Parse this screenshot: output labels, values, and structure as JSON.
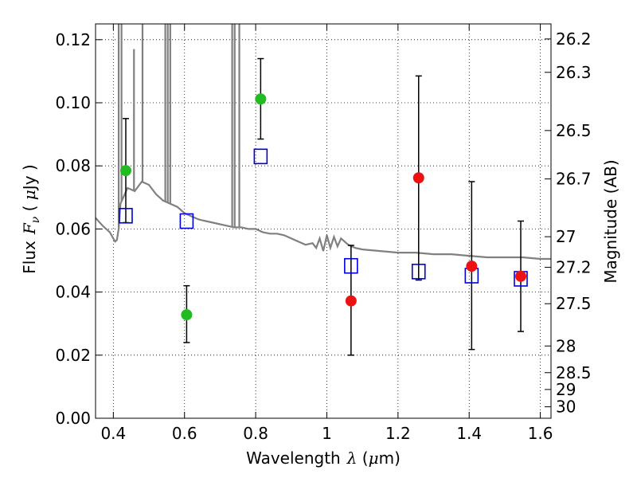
{
  "chart_data": {
    "type": "scatter",
    "xlabel": {
      "text": "Wavelength",
      "sym": "λ",
      "unit_open": " (",
      "unit_mu": "μ",
      "unit_rest": "m)"
    },
    "ylabel": {
      "text": "Flux",
      "sym": "F",
      "sub": "ν",
      "unit_open": " ( ",
      "unit_mu": "μ",
      "unit_rest": "Jy )"
    },
    "y2label": "Magnitude (AB)",
    "xlim": [
      0.35,
      1.63
    ],
    "ylim": [
      0.0,
      0.125
    ],
    "grid": true,
    "x_ticks": [
      {
        "value": 0.4,
        "label": "0.4"
      },
      {
        "value": 0.6,
        "label": "0.6"
      },
      {
        "value": 0.8,
        "label": "0.8"
      },
      {
        "value": 1.0,
        "label": "1"
      },
      {
        "value": 1.2,
        "label": "1.2"
      },
      {
        "value": 1.4,
        "label": "1.4"
      },
      {
        "value": 1.6,
        "label": "1.6"
      }
    ],
    "y_ticks": [
      {
        "value": 0.0,
        "label": "0.00"
      },
      {
        "value": 0.02,
        "label": "0.02"
      },
      {
        "value": 0.04,
        "label": "0.04"
      },
      {
        "value": 0.06,
        "label": "0.06"
      },
      {
        "value": 0.08,
        "label": "0.08"
      },
      {
        "value": 0.1,
        "label": "0.10"
      },
      {
        "value": 0.12,
        "label": "0.12"
      }
    ],
    "magnitude_ticks": [
      "26.2",
      "26.3",
      "26.5",
      "26.7",
      "27",
      "27.2",
      "27.5",
      "28",
      "28.5",
      "29",
      "30"
    ],
    "colors": {
      "green": "#22bb22",
      "red": "#ee1111",
      "model_box": "#0000dd",
      "spectrum": "#808080",
      "errorbar": "#000000"
    },
    "observed": [
      {
        "x": 0.435,
        "y": 0.0785,
        "ylo": 0.062,
        "yhi": 0.095,
        "color": "green"
      },
      {
        "x": 0.606,
        "y": 0.0328,
        "ylo": 0.024,
        "yhi": 0.042,
        "color": "green"
      },
      {
        "x": 0.814,
        "y": 0.1012,
        "ylo": 0.0885,
        "yhi": 0.114,
        "color": "green"
      },
      {
        "x": 1.068,
        "y": 0.0372,
        "ylo": 0.02,
        "yhi": 0.0548,
        "color": "red"
      },
      {
        "x": 1.258,
        "y": 0.0762,
        "ylo": 0.0438,
        "yhi": 0.1085,
        "color": "red"
      },
      {
        "x": 1.407,
        "y": 0.0482,
        "ylo": 0.0218,
        "yhi": 0.075,
        "color": "red"
      },
      {
        "x": 1.545,
        "y": 0.045,
        "ylo": 0.0275,
        "yhi": 0.0625,
        "color": "red"
      }
    ],
    "model_photometry": [
      {
        "x": 0.435,
        "y": 0.0642
      },
      {
        "x": 0.606,
        "y": 0.0625
      },
      {
        "x": 0.814,
        "y": 0.083
      },
      {
        "x": 1.068,
        "y": 0.0483
      },
      {
        "x": 1.258,
        "y": 0.0465
      },
      {
        "x": 1.407,
        "y": 0.0452
      },
      {
        "x": 1.545,
        "y": 0.0442
      }
    ],
    "spectrum": {
      "x": [
        0.35,
        0.37,
        0.39,
        0.4,
        0.405,
        0.41,
        0.415,
        0.42,
        0.44,
        0.46,
        0.48,
        0.5,
        0.52,
        0.54,
        0.56,
        0.58,
        0.6,
        0.62,
        0.64,
        0.66,
        0.68,
        0.7,
        0.72,
        0.74,
        0.76,
        0.78,
        0.8,
        0.82,
        0.84,
        0.86,
        0.88,
        0.9,
        0.92,
        0.94,
        0.96,
        0.97,
        0.98,
        0.99,
        1.0,
        1.01,
        1.02,
        1.03,
        1.04,
        1.06,
        1.08,
        1.1,
        1.15,
        1.2,
        1.25,
        1.3,
        1.35,
        1.4,
        1.45,
        1.5,
        1.55,
        1.6,
        1.63
      ],
      "y": [
        0.0635,
        0.061,
        0.059,
        0.057,
        0.056,
        0.0565,
        0.06,
        0.068,
        0.073,
        0.072,
        0.075,
        0.074,
        0.071,
        0.069,
        0.068,
        0.067,
        0.065,
        0.064,
        0.063,
        0.0625,
        0.062,
        0.0615,
        0.061,
        0.0605,
        0.0605,
        0.06,
        0.06,
        0.059,
        0.0585,
        0.0585,
        0.058,
        0.057,
        0.056,
        0.055,
        0.0555,
        0.054,
        0.057,
        0.053,
        0.058,
        0.054,
        0.0575,
        0.0545,
        0.057,
        0.055,
        0.054,
        0.0535,
        0.053,
        0.0525,
        0.0525,
        0.052,
        0.052,
        0.0515,
        0.051,
        0.051,
        0.051,
        0.0505,
        0.0505
      ]
    },
    "emission_lines": [
      {
        "x": 0.415,
        "ytop": 0.125
      },
      {
        "x": 0.423,
        "ytop": 0.125
      },
      {
        "x": 0.458,
        "ytop": 0.117
      },
      {
        "x": 0.482,
        "ytop": 0.125
      },
      {
        "x": 0.546,
        "ytop": 0.125
      },
      {
        "x": 0.553,
        "ytop": 0.125
      },
      {
        "x": 0.56,
        "ytop": 0.125
      },
      {
        "x": 0.734,
        "ytop": 0.125
      },
      {
        "x": 0.741,
        "ytop": 0.125
      },
      {
        "x": 0.754,
        "ytop": 0.125
      }
    ]
  }
}
